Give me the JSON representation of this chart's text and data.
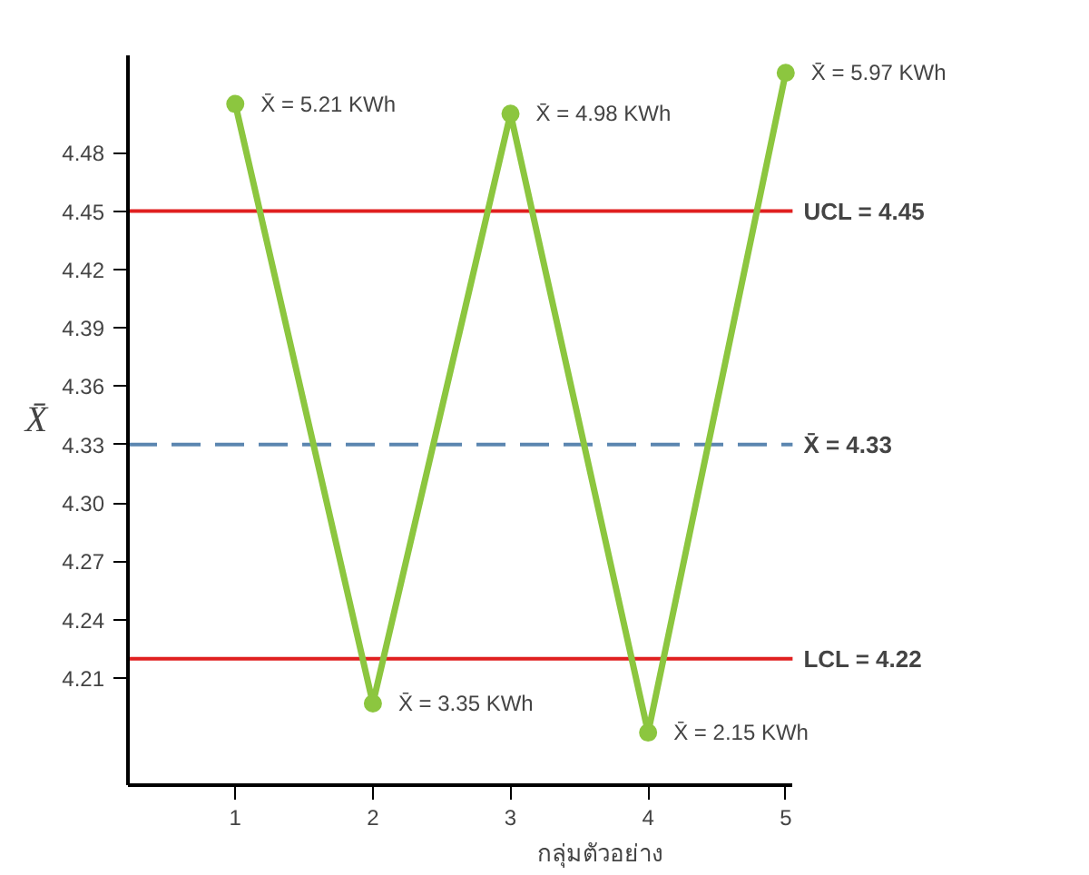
{
  "chart_data": {
    "type": "line",
    "xlabel": "กลุ่มตัวอย่าง",
    "ylabel": "X̄",
    "x": [
      1,
      2,
      3,
      4,
      5
    ],
    "series": [
      {
        "color": "#8cc63f",
        "values": [
          4.505,
          4.197,
          4.5,
          4.182,
          4.521
        ]
      }
    ],
    "xlim": [
      0.22,
      5.05
    ],
    "xticks": [
      1,
      2,
      3,
      4,
      5
    ],
    "ylim": [
      4.155,
      4.53
    ],
    "yticks": [
      4.21,
      4.24,
      4.27,
      {
        "value": 4.3,
        "label": "4.30"
      },
      4.33,
      4.36,
      4.39,
      4.42,
      4.45,
      4.48
    ],
    "ref_lines": [
      {
        "axis": "y",
        "value": 4.45,
        "label": "UCL =  4.45",
        "color": "#e02020",
        "line_style": "solid"
      },
      {
        "axis": "y",
        "value": 4.33,
        "label": "X̄  =  4.33",
        "color": "#5b86b0",
        "line_style": "dashed"
      },
      {
        "axis": "y",
        "value": 4.22,
        "label": "LCL = 4.22",
        "color": "#e02020",
        "line_style": "solid"
      }
    ],
    "annotations": [
      {
        "text": "X̄  = 5.21 KWh",
        "x": 1,
        "y": 4.505
      },
      {
        "text": "X̄  = 3.35 KWh",
        "x": 2,
        "y": 4.197
      },
      {
        "text": "X̄  = 4.98 KWh",
        "x": 3,
        "y": 4.5
      },
      {
        "text": "X̄  = 2.15 KWh",
        "x": 4,
        "y": 4.182
      },
      {
        "text": "X̄  = 5.97 KWh",
        "x": 5,
        "y": 4.521
      }
    ],
    "marker": "circle",
    "line_style": "solid"
  }
}
